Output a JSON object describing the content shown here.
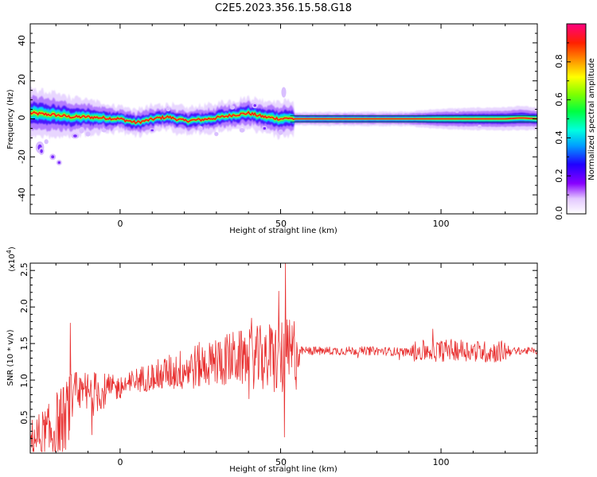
{
  "title": "C2E5.2023.356.15.58.G18",
  "spectrogram": {
    "xlabel": "Height of straight line (km)",
    "ylabel": "Frequency (Hz)",
    "xlim": [
      -28,
      130
    ],
    "ylim": [
      -50,
      50
    ],
    "xticks": [
      "0",
      "50",
      "100"
    ],
    "yticks": [
      "40",
      "20",
      "0",
      "-20",
      "-40"
    ],
    "colorbar": {
      "label": "Normalized spectral amplitude",
      "range": [
        0.0,
        1.0
      ],
      "ticks": [
        "0.0",
        "0.2",
        "0.4",
        "0.6",
        "0.8"
      ]
    }
  },
  "snr": {
    "xlabel": "Height of straight line (km)",
    "ylabel": "SNR (10 * v/v)",
    "scale_label": "(x10",
    "scale_exp": "4",
    "scale_close": ")",
    "xlim": [
      -28,
      130
    ],
    "ylim": [
      0,
      2.6
    ],
    "xticks": [
      "0",
      "50",
      "100"
    ],
    "yticks": [
      "0.5",
      "1.0",
      "1.5",
      "2.0",
      "2.5"
    ],
    "line_color": "#e83030"
  },
  "chart_data": [
    {
      "type": "heatmap",
      "title": "C2E5.2023.356.15.58.G18",
      "xlabel": "Height of straight line (km)",
      "ylabel": "Frequency (Hz)",
      "xlim": [
        -28,
        130
      ],
      "ylim": [
        -50,
        50
      ],
      "ridge_frequency_hz": {
        "x": [
          -28,
          -20,
          -15,
          -10,
          -5,
          0,
          5,
          8,
          12,
          15,
          20,
          25,
          30,
          35,
          40,
          45,
          50,
          53,
          54,
          60,
          70,
          80,
          90,
          100,
          110,
          120,
          125,
          130
        ],
        "y": [
          3,
          2,
          1,
          1,
          0.5,
          0,
          -2,
          -1,
          0.5,
          1,
          -1,
          -0.5,
          0.5,
          2,
          3,
          1,
          0,
          0.5,
          0,
          0,
          0,
          0,
          0,
          0,
          0,
          0,
          0.5,
          0
        ]
      },
      "colorbar": {
        "label": "Normalized spectral amplitude",
        "range": [
          0.0,
          1.0
        ]
      }
    },
    {
      "type": "line",
      "xlabel": "Height of straight line (km)",
      "ylabel": "SNR (10 * v/v)",
      "xlim": [
        -28,
        130
      ],
      "ylim": [
        0,
        2.6
      ],
      "y_scale": "x10^4",
      "series": [
        {
          "color": "#e83030",
          "trend": {
            "x": [
              -28,
              -22,
              -18,
              -15,
              -10,
              -5,
              0,
              5,
              10,
              15,
              20,
              25,
              30,
              35,
              40,
              45,
              50,
              53,
              55,
              60,
              70,
              80,
              90,
              95,
              100,
              105,
              110,
              115,
              120,
              125,
              130
            ],
            "y": [
              0.2,
              0.25,
              0.45,
              0.7,
              0.8,
              0.85,
              0.9,
              1.0,
              1.05,
              1.1,
              1.15,
              1.2,
              1.25,
              1.3,
              1.3,
              1.3,
              1.3,
              1.3,
              1.4,
              1.4,
              1.4,
              1.4,
              1.38,
              1.4,
              1.4,
              1.42,
              1.4,
              1.38,
              1.4,
              1.4,
              1.4
            ]
          },
          "noise_amplitude": {
            "x": [
              -28,
              -20,
              -10,
              0,
              10,
              20,
              30,
              40,
              50,
              55,
              56,
              90,
              92,
              120,
              122,
              130
            ],
            "y": [
              0.25,
              0.5,
              0.35,
              0.15,
              0.2,
              0.3,
              0.35,
              0.4,
              0.55,
              0.55,
              0.06,
              0.06,
              0.15,
              0.15,
              0.05,
              0.05
            ]
          },
          "peaks": [
            {
              "x": -15.5,
              "y": 1.78
            },
            {
              "x": 51.5,
              "y": 2.6
            },
            {
              "x": 51.2,
              "y": 0.22
            },
            {
              "x": -17,
              "y": 0.05
            }
          ]
        }
      ]
    }
  ]
}
